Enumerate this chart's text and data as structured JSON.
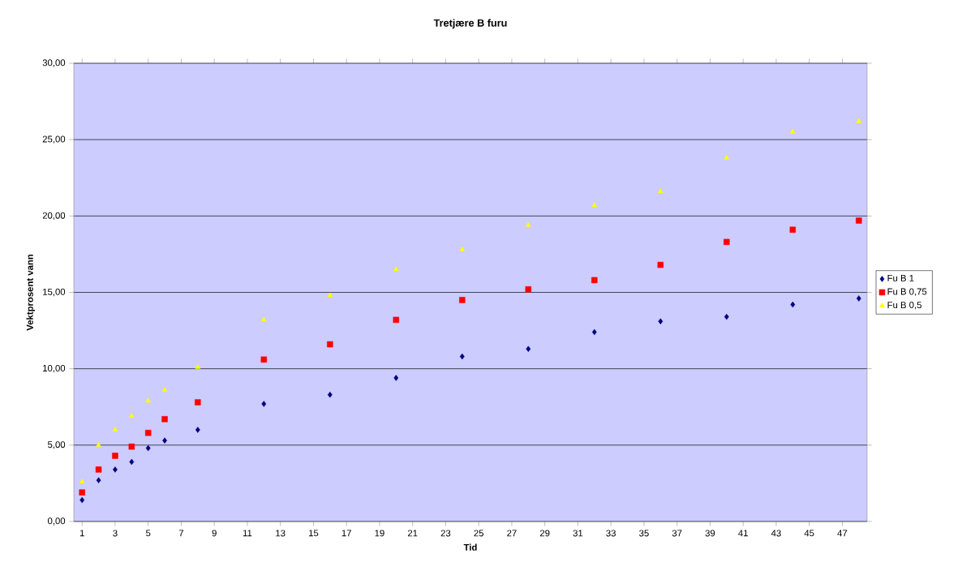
{
  "chart_data": {
    "type": "scatter",
    "title": "Tretjære B furu",
    "xlabel": "Tid",
    "ylabel": "Vektprosent vann",
    "x": [
      1,
      2,
      3,
      4,
      5,
      6,
      8,
      12,
      16,
      20,
      24,
      28,
      32,
      36,
      40,
      44,
      48
    ],
    "series": [
      {
        "name": "Fu B 1",
        "color": "#000080",
        "marker": "diamond",
        "values": [
          1.4,
          2.7,
          3.4,
          3.9,
          4.8,
          5.3,
          6.0,
          7.7,
          8.3,
          9.4,
          10.8,
          11.3,
          12.4,
          13.1,
          13.4,
          14.2,
          14.6
        ]
      },
      {
        "name": "Fu B 0,75",
        "color": "#ff0000",
        "marker": "square",
        "values": [
          1.9,
          3.4,
          4.3,
          4.9,
          5.8,
          6.7,
          7.8,
          10.6,
          11.6,
          13.2,
          14.5,
          15.2,
          15.8,
          16.8,
          18.3,
          19.1,
          19.7
        ]
      },
      {
        "name": "Fu B 0,5",
        "color": "#ffff00",
        "marker": "triangle",
        "values": [
          2.6,
          5.0,
          6.0,
          6.9,
          7.9,
          8.6,
          10.1,
          13.2,
          14.8,
          16.5,
          17.8,
          19.4,
          20.7,
          21.6,
          23.8,
          25.5,
          26.2
        ]
      }
    ],
    "xlim": [
      0.5,
      48.5
    ],
    "xticks": [
      1,
      3,
      5,
      7,
      9,
      11,
      13,
      15,
      17,
      19,
      21,
      23,
      25,
      27,
      29,
      31,
      33,
      35,
      37,
      39,
      41,
      43,
      45,
      47
    ],
    "ylim": [
      0,
      30
    ],
    "yticks": [
      {
        "value": 0,
        "label": "0,00"
      },
      {
        "value": 5,
        "label": "5,00"
      },
      {
        "value": 10,
        "label": "10,00"
      },
      {
        "value": 15,
        "label": "15,00"
      },
      {
        "value": 20,
        "label": "20,00"
      },
      {
        "value": 25,
        "label": "25,00"
      },
      {
        "value": 30,
        "label": "30,00"
      }
    ],
    "grid": "y",
    "legend": "right"
  }
}
